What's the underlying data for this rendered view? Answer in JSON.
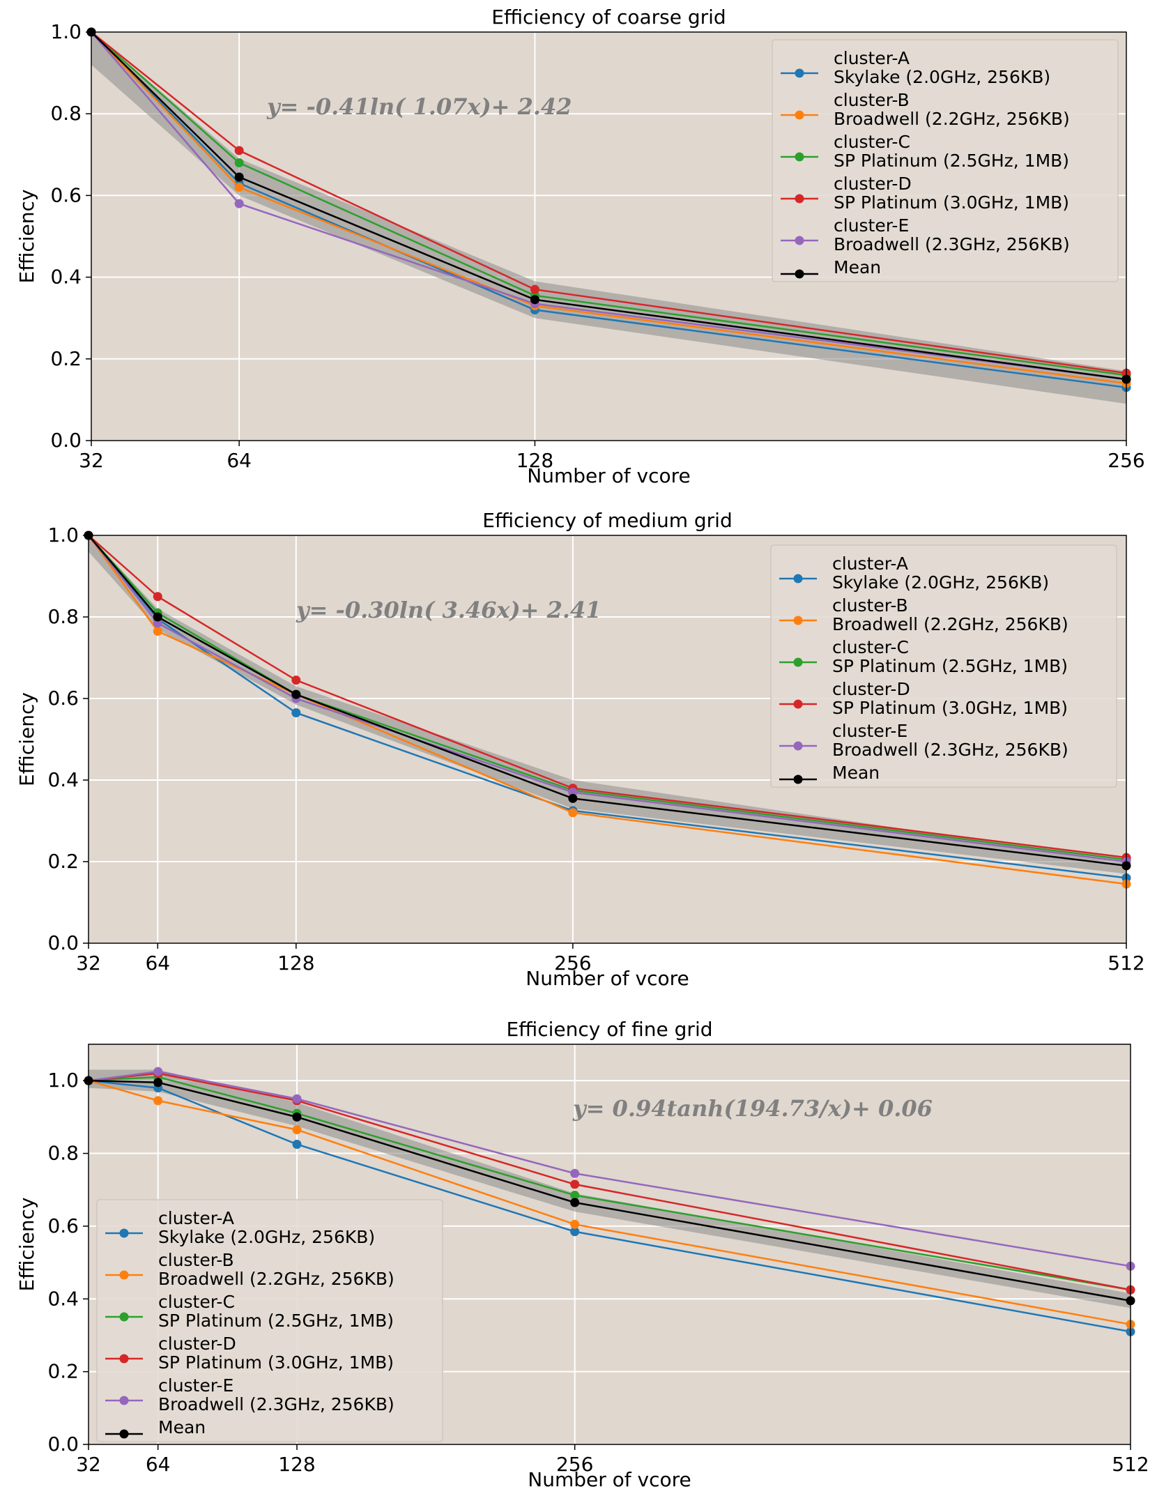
{
  "colors": {
    "background": "#e0d7cf",
    "grid": "#ffffff",
    "band": "#8c8c8c",
    "legend_bg": "#e3dbd3",
    "legend_border": "#cfc7bf",
    "series": [
      "#1f77b4",
      "#ff7f0e",
      "#2ca02c",
      "#d62728",
      "#9467bd",
      "#000000"
    ]
  },
  "chart_data": [
    {
      "type": "line",
      "title": "Efficiency of coarse grid",
      "xlabel": "Number of vcore",
      "ylabel": "Efficiency",
      "x": [
        32,
        64,
        128,
        256
      ],
      "x_tick_labels": [
        "32",
        "64",
        "128",
        "256"
      ],
      "xlim": [
        32,
        256
      ],
      "ylim": [
        0,
        1.0
      ],
      "y_ticks": [
        0.0,
        0.2,
        0.4,
        0.6,
        0.8,
        1.0
      ],
      "y_tick_labels": [
        "0.0",
        "0.2",
        "0.4",
        "0.6",
        "0.8",
        "1.0"
      ],
      "grid": true,
      "legend_position": "top-right",
      "equation": "y= -0.41ln(  1.07x)+  2.42",
      "series": [
        {
          "name": "cluster-A",
          "label2": "Skylake (2.0GHz, 256KB)",
          "values": [
            1.0,
            0.63,
            0.32,
            0.13
          ]
        },
        {
          "name": "cluster-B",
          "label2": "Broadwell (2.2GHz, 256KB)",
          "values": [
            1.0,
            0.62,
            0.33,
            0.14
          ]
        },
        {
          "name": "cluster-C",
          "label2": "SP Platinum (2.5GHz, 1MB)",
          "values": [
            1.0,
            0.68,
            0.355,
            0.16
          ]
        },
        {
          "name": "cluster-D",
          "label2": "SP Platinum (3.0GHz, 1MB)",
          "values": [
            1.0,
            0.71,
            0.37,
            0.165
          ]
        },
        {
          "name": "cluster-E",
          "label2": "Broadwell (2.3GHz, 256KB)",
          "values": [
            1.0,
            0.58,
            0.335,
            0.15
          ]
        },
        {
          "name": "Mean",
          "label2": "",
          "values": [
            1.0,
            0.645,
            0.345,
            0.15
          ]
        }
      ]
    },
    {
      "type": "line",
      "title": "Efficiency of medium grid",
      "xlabel": "Number of vcore",
      "ylabel": "Efficiency",
      "x": [
        32,
        64,
        128,
        256,
        512
      ],
      "x_tick_labels": [
        "32",
        "64",
        "128",
        "256",
        "512"
      ],
      "xlim": [
        32,
        512
      ],
      "ylim": [
        0,
        1.0
      ],
      "y_ticks": [
        0.0,
        0.2,
        0.4,
        0.6,
        0.8,
        1.0
      ],
      "y_tick_labels": [
        "0.0",
        "0.2",
        "0.4",
        "0.6",
        "0.8",
        "1.0"
      ],
      "grid": true,
      "legend_position": "top-right",
      "equation": "y= -0.30ln(  3.46x)+  2.41",
      "series": [
        {
          "name": "cluster-A",
          "label2": "Skylake (2.0GHz, 256KB)",
          "values": [
            1.0,
            0.795,
            0.565,
            0.325,
            0.16
          ]
        },
        {
          "name": "cluster-B",
          "label2": "Broadwell (2.2GHz, 256KB)",
          "values": [
            1.0,
            0.765,
            0.61,
            0.32,
            0.145
          ]
        },
        {
          "name": "cluster-C",
          "label2": "SP Platinum (2.5GHz, 1MB)",
          "values": [
            1.0,
            0.81,
            0.61,
            0.375,
            0.205
          ]
        },
        {
          "name": "cluster-D",
          "label2": "SP Platinum (3.0GHz, 1MB)",
          "values": [
            1.0,
            0.85,
            0.645,
            0.38,
            0.21
          ]
        },
        {
          "name": "cluster-E",
          "label2": "Broadwell (2.3GHz, 256KB)",
          "values": [
            1.0,
            0.785,
            0.6,
            0.37,
            0.2
          ]
        },
        {
          "name": "Mean",
          "label2": "",
          "values": [
            1.0,
            0.8,
            0.61,
            0.355,
            0.19
          ]
        }
      ]
    },
    {
      "type": "line",
      "title": "Efficiency of fine grid",
      "xlabel": "Number of vcore",
      "ylabel": "Efficiency",
      "x": [
        32,
        64,
        128,
        256,
        512
      ],
      "x_tick_labels": [
        "32",
        "64",
        "128",
        "256",
        "512"
      ],
      "xlim": [
        32,
        512
      ],
      "ylim": [
        0,
        1.1
      ],
      "y_ticks": [
        0.0,
        0.2,
        0.4,
        0.6,
        0.8,
        1.0
      ],
      "y_tick_labels": [
        "0.0",
        "0.2",
        "0.4",
        "0.6",
        "0.8",
        "1.0"
      ],
      "grid": true,
      "legend_position": "bottom-left",
      "equation": "y=  0.94tanh(194.73/x)+  0.06",
      "series": [
        {
          "name": "cluster-A",
          "label2": "Skylake (2.0GHz, 256KB)",
          "values": [
            1.0,
            0.98,
            0.825,
            0.585,
            0.31
          ]
        },
        {
          "name": "cluster-B",
          "label2": "Broadwell (2.2GHz, 256KB)",
          "values": [
            1.0,
            0.945,
            0.865,
            0.605,
            0.33
          ]
        },
        {
          "name": "cluster-C",
          "label2": "SP Platinum (2.5GHz, 1MB)",
          "values": [
            1.0,
            1.01,
            0.91,
            0.685,
            0.425
          ]
        },
        {
          "name": "cluster-D",
          "label2": "SP Platinum (3.0GHz, 1MB)",
          "values": [
            1.0,
            1.02,
            0.945,
            0.715,
            0.425
          ]
        },
        {
          "name": "cluster-E",
          "label2": "Broadwell (2.3GHz, 256KB)",
          "values": [
            1.0,
            1.025,
            0.95,
            0.745,
            0.49
          ]
        },
        {
          "name": "Mean",
          "label2": "",
          "values": [
            1.0,
            0.995,
            0.9,
            0.665,
            0.395
          ]
        }
      ]
    }
  ]
}
